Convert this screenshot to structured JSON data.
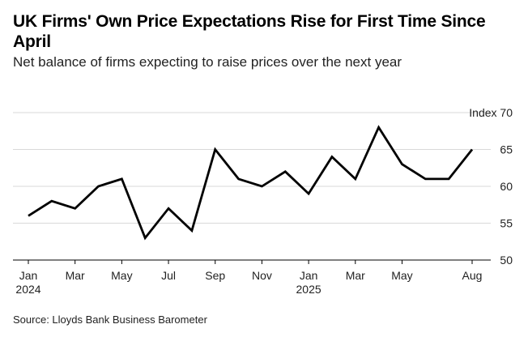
{
  "title": "UK Firms' Own Price Expectations Rise for First Time Since April",
  "subtitle": "Net balance of firms expecting to raise prices over the next year",
  "source": "Source: Lloyds Bank Business Barometer",
  "chart_data": {
    "type": "line",
    "x": [
      "2024-01",
      "2024-02",
      "2024-03",
      "2024-04",
      "2024-05",
      "2024-06",
      "2024-07",
      "2024-08",
      "2024-09",
      "2024-10",
      "2024-11",
      "2024-12",
      "2025-01",
      "2025-02",
      "2025-03",
      "2025-04",
      "2025-05",
      "2025-06",
      "2025-07",
      "2025-08"
    ],
    "series": [
      {
        "values": [
          56,
          58,
          57,
          60,
          61,
          53,
          57,
          54,
          65,
          61,
          60,
          62,
          59,
          64,
          61,
          68,
          63,
          61,
          61,
          65
        ]
      }
    ],
    "ylim": [
      50,
      70
    ],
    "yticks": [
      50,
      55,
      60,
      65,
      70
    ],
    "ytick_labels": [
      "50",
      "55",
      "60",
      "65",
      "Index 70"
    ],
    "xtick_positions": [
      0,
      2,
      4,
      6,
      8,
      10,
      12,
      14,
      16,
      19
    ],
    "xtick_labels": [
      "Jan",
      "Mar",
      "May",
      "Jul",
      "Sep",
      "Nov",
      "Jan",
      "Mar",
      "May",
      "Aug"
    ],
    "xtick_year_labels": {
      "0": "2024",
      "12": "2025"
    },
    "grid": true,
    "line_color": "#000000",
    "grid_color": "#d9d9d9"
  }
}
